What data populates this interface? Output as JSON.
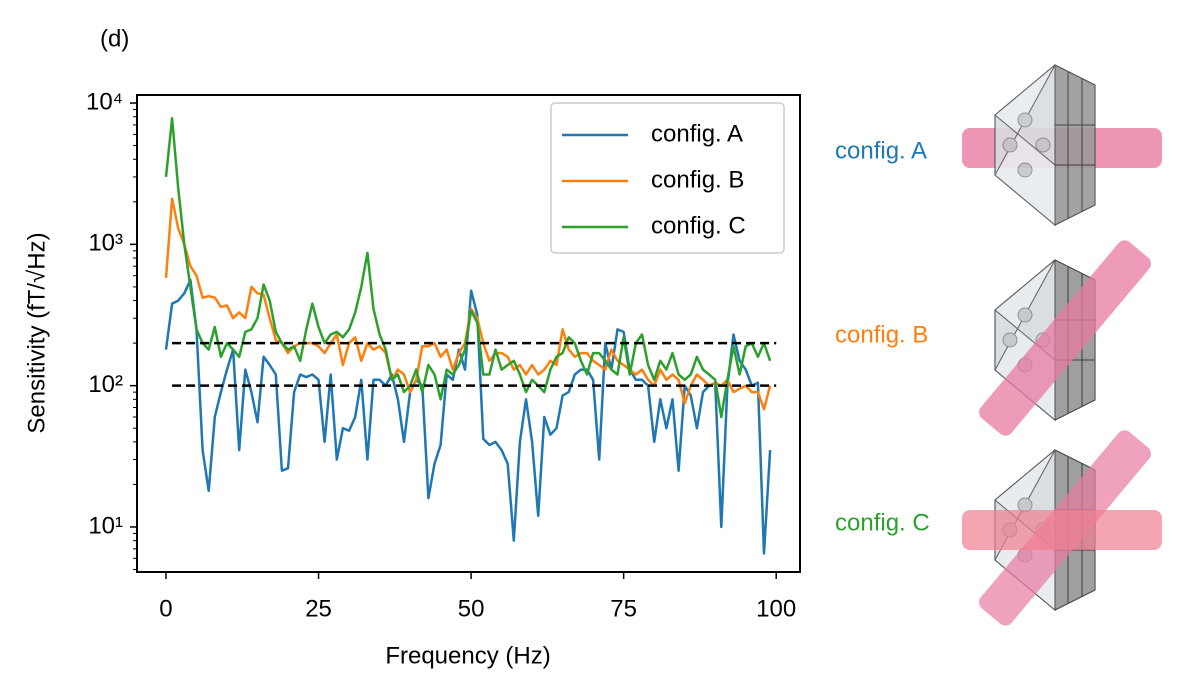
{
  "chart_data": {
    "type": "line",
    "panel_label": "(d)",
    "xlabel": "Frequency (Hz)",
    "ylabel": "Sensitivity (fT/√Hz)",
    "log_y": true,
    "legend": "upper right",
    "xlim": [
      -4.75,
      103.9
    ],
    "ylim": [
      4.8,
      11400
    ],
    "xticks": [
      0,
      25,
      50,
      75,
      100
    ],
    "yticks": [
      {
        "value": 10,
        "label": "10¹"
      },
      {
        "value": 100,
        "label": "10²"
      },
      {
        "value": 1000,
        "label": "10³"
      },
      {
        "value": 10000,
        "label": "10⁴"
      }
    ],
    "minor_yticks": [
      5,
      6,
      7,
      8,
      9,
      20,
      30,
      40,
      50,
      60,
      70,
      80,
      90,
      200,
      300,
      400,
      500,
      600,
      700,
      800,
      900,
      2000,
      3000,
      4000,
      5000,
      6000,
      7000,
      8000,
      9000
    ],
    "reference_lines": [
      {
        "y": 200,
        "x": [
          1,
          100
        ],
        "color": "#000000"
      },
      {
        "y": 100,
        "x": [
          1,
          100
        ],
        "color": "#000000"
      }
    ],
    "x": [
      0,
      1,
      2,
      3,
      4,
      5,
      6,
      7,
      8,
      9,
      10,
      11,
      12,
      13,
      14,
      15,
      16,
      17,
      18,
      19,
      20,
      21,
      22,
      23,
      24,
      25,
      26,
      27,
      28,
      29,
      30,
      31,
      32,
      33,
      34,
      35,
      36,
      37,
      38,
      39,
      40,
      41,
      42,
      43,
      44,
      45,
      46,
      47,
      48,
      49,
      50,
      51,
      52,
      53,
      54,
      55,
      56,
      57,
      58,
      59,
      60,
      61,
      62,
      63,
      64,
      65,
      66,
      67,
      68,
      69,
      70,
      71,
      72,
      73,
      74,
      75,
      76,
      77,
      78,
      79,
      80,
      81,
      82,
      83,
      84,
      85,
      86,
      87,
      88,
      89,
      90,
      91,
      92,
      93,
      94,
      95,
      96,
      97,
      98,
      99
    ],
    "series": [
      {
        "name": "config. A",
        "color": "#1f77b4",
        "values": [
          180,
          380,
          400,
          450,
          560,
          250,
          35,
          18,
          60,
          90,
          130,
          180,
          35,
          130,
          90,
          55,
          160,
          140,
          120,
          25,
          26,
          90,
          120,
          115,
          120,
          110,
          40,
          120,
          30,
          50,
          48,
          60,
          110,
          30,
          110,
          110,
          100,
          120,
          80,
          40,
          90,
          110,
          100,
          16,
          28,
          38,
          120,
          110,
          180,
          130,
          470,
          320,
          42,
          38,
          40,
          35,
          28,
          8,
          40,
          80,
          40,
          12,
          60,
          45,
          50,
          85,
          90,
          120,
          130,
          130,
          110,
          30,
          200,
          130,
          250,
          240,
          130,
          110,
          110,
          100,
          40,
          80,
          50,
          80,
          25,
          100,
          85,
          50,
          90,
          100,
          105,
          10,
          100,
          230,
          150,
          130,
          100,
          105,
          6.5,
          35
        ]
      },
      {
        "name": "config. B",
        "color": "#ff7f0e",
        "values": [
          580,
          2100,
          1300,
          1000,
          700,
          600,
          420,
          430,
          420,
          360,
          370,
          300,
          330,
          300,
          500,
          450,
          440,
          300,
          210,
          200,
          170,
          190,
          200,
          200,
          200,
          190,
          170,
          200,
          230,
          140,
          200,
          220,
          150,
          200,
          180,
          190,
          170,
          110,
          130,
          120,
          90,
          110,
          190,
          190,
          200,
          160,
          180,
          130,
          170,
          200,
          350,
          300,
          200,
          150,
          170,
          170,
          160,
          130,
          140,
          120,
          140,
          120,
          130,
          150,
          140,
          250,
          180,
          160,
          170,
          170,
          150,
          140,
          130,
          180,
          150,
          140,
          130,
          120,
          130,
          110,
          100,
          130,
          110,
          120,
          110,
          75,
          100,
          120,
          110,
          100,
          105,
          100,
          110,
          90,
          95,
          100,
          90,
          90,
          68,
          100
        ]
      },
      {
        "name": "config. C",
        "color": "#2ca02c",
        "values": [
          3000,
          7800,
          2500,
          1000,
          500,
          250,
          200,
          180,
          260,
          160,
          200,
          180,
          160,
          240,
          250,
          300,
          520,
          400,
          240,
          200,
          180,
          190,
          150,
          250,
          380,
          260,
          200,
          230,
          240,
          220,
          250,
          330,
          500,
          870,
          350,
          230,
          180,
          110,
          120,
          90,
          100,
          130,
          90,
          140,
          120,
          80,
          130,
          120,
          140,
          180,
          340,
          280,
          120,
          120,
          180,
          130,
          140,
          150,
          120,
          90,
          110,
          100,
          90,
          130,
          160,
          170,
          220,
          200,
          150,
          120,
          170,
          170,
          150,
          130,
          120,
          220,
          120,
          200,
          230,
          140,
          110,
          150,
          130,
          170,
          120,
          110,
          120,
          160,
          130,
          120,
          110,
          60,
          110,
          190,
          120,
          190,
          200,
          160,
          200,
          150
        ]
      }
    ]
  }
}
